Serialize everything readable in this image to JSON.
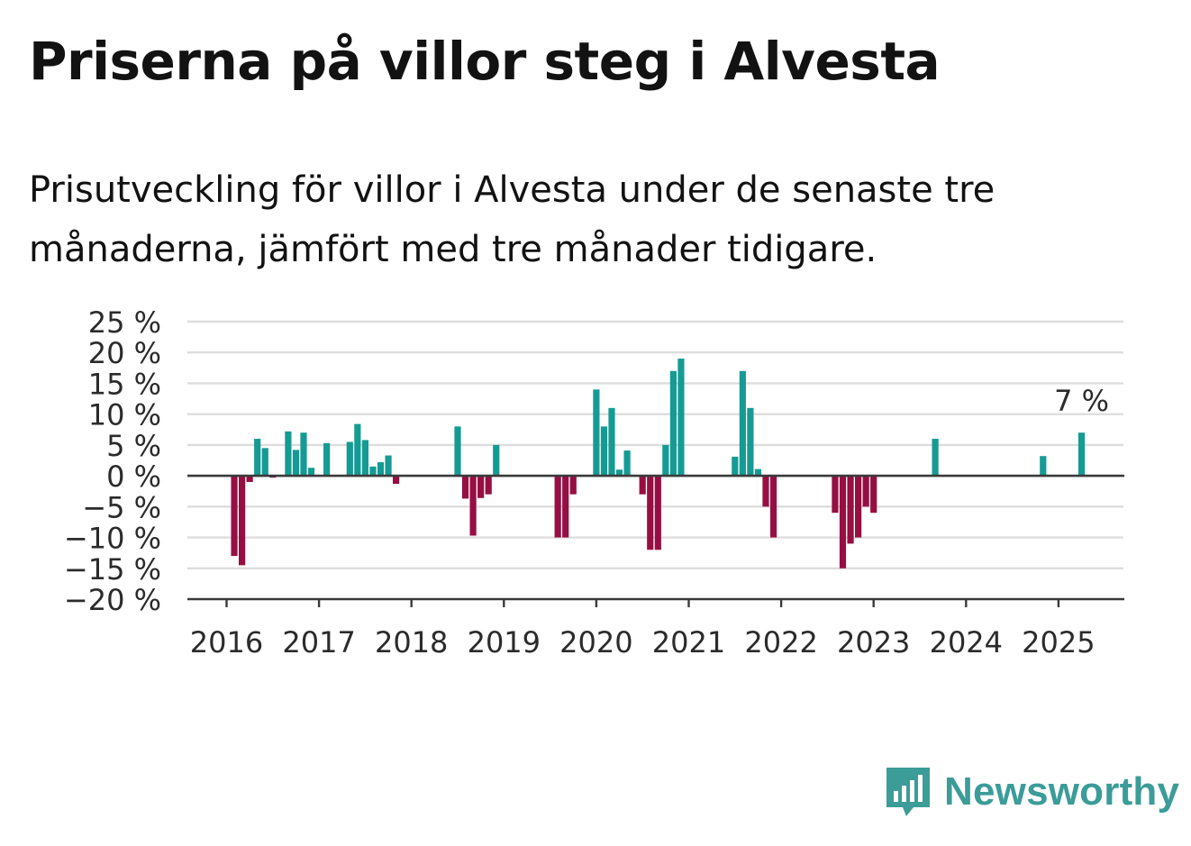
{
  "title": "Priserna på villor steg i Alvesta",
  "subtitle": "Prisutveckling för villor i Alvesta under de senaste tre månaderna, jämfört med tre månader tidigare.",
  "colors": {
    "positive": "#159b94",
    "negative": "#960f43",
    "grid": "#dddddd",
    "axis": "#3a3a3a",
    "brand": "#3b9c98"
  },
  "brand": {
    "name": "Newsworthy",
    "icon": "bar-chart-bubble-icon"
  },
  "chart_data": {
    "type": "bar",
    "title": "",
    "xlabel": "",
    "ylabel": "",
    "unit": "%",
    "grid": true,
    "ylim": [
      -20,
      25
    ],
    "yticks": [
      25,
      20,
      15,
      10,
      5,
      0,
      -5,
      -10,
      -15,
      -20
    ],
    "ytick_labels": [
      "25 %",
      "20 %",
      "15 %",
      "10 %",
      "5 %",
      "0 %",
      "−5 %",
      "−10 %",
      "−15 %",
      "−20 %"
    ],
    "xticks": [
      "2016",
      "2017",
      "2018",
      "2019",
      "2020",
      "2021",
      "2022",
      "2023",
      "2024",
      "2025"
    ],
    "start": "2016-01",
    "annotation": {
      "label": "7 %",
      "target": "last"
    },
    "values": [
      0,
      -13,
      -14.5,
      -1,
      6,
      4.5,
      -0.3,
      0,
      7.2,
      4.2,
      7,
      1.3,
      0,
      5.3,
      0,
      0,
      5.5,
      8.4,
      5.8,
      1.5,
      2.2,
      3.3,
      -1.3,
      0,
      0,
      0,
      0,
      0,
      0,
      0,
      8,
      -3.7,
      -9.7,
      -3.6,
      -3,
      5,
      0,
      0,
      0,
      0,
      0,
      0,
      0,
      -10,
      -10,
      -3,
      0,
      0,
      14,
      8,
      11,
      1,
      4.1,
      0,
      -3,
      -12,
      -12,
      5,
      17,
      19,
      0,
      0,
      0,
      0,
      0,
      0,
      3.1,
      17,
      11,
      1.1,
      -5,
      -10,
      0,
      0,
      0,
      0,
      0,
      0,
      0,
      -6,
      -15,
      -11,
      -10,
      -5,
      -6,
      0,
      0,
      0,
      0,
      0,
      0,
      0,
      6,
      0,
      0,
      0,
      0,
      0,
      0,
      0,
      0,
      0,
      0,
      0,
      0,
      0,
      3.2,
      0,
      0,
      0,
      0,
      7
    ]
  }
}
